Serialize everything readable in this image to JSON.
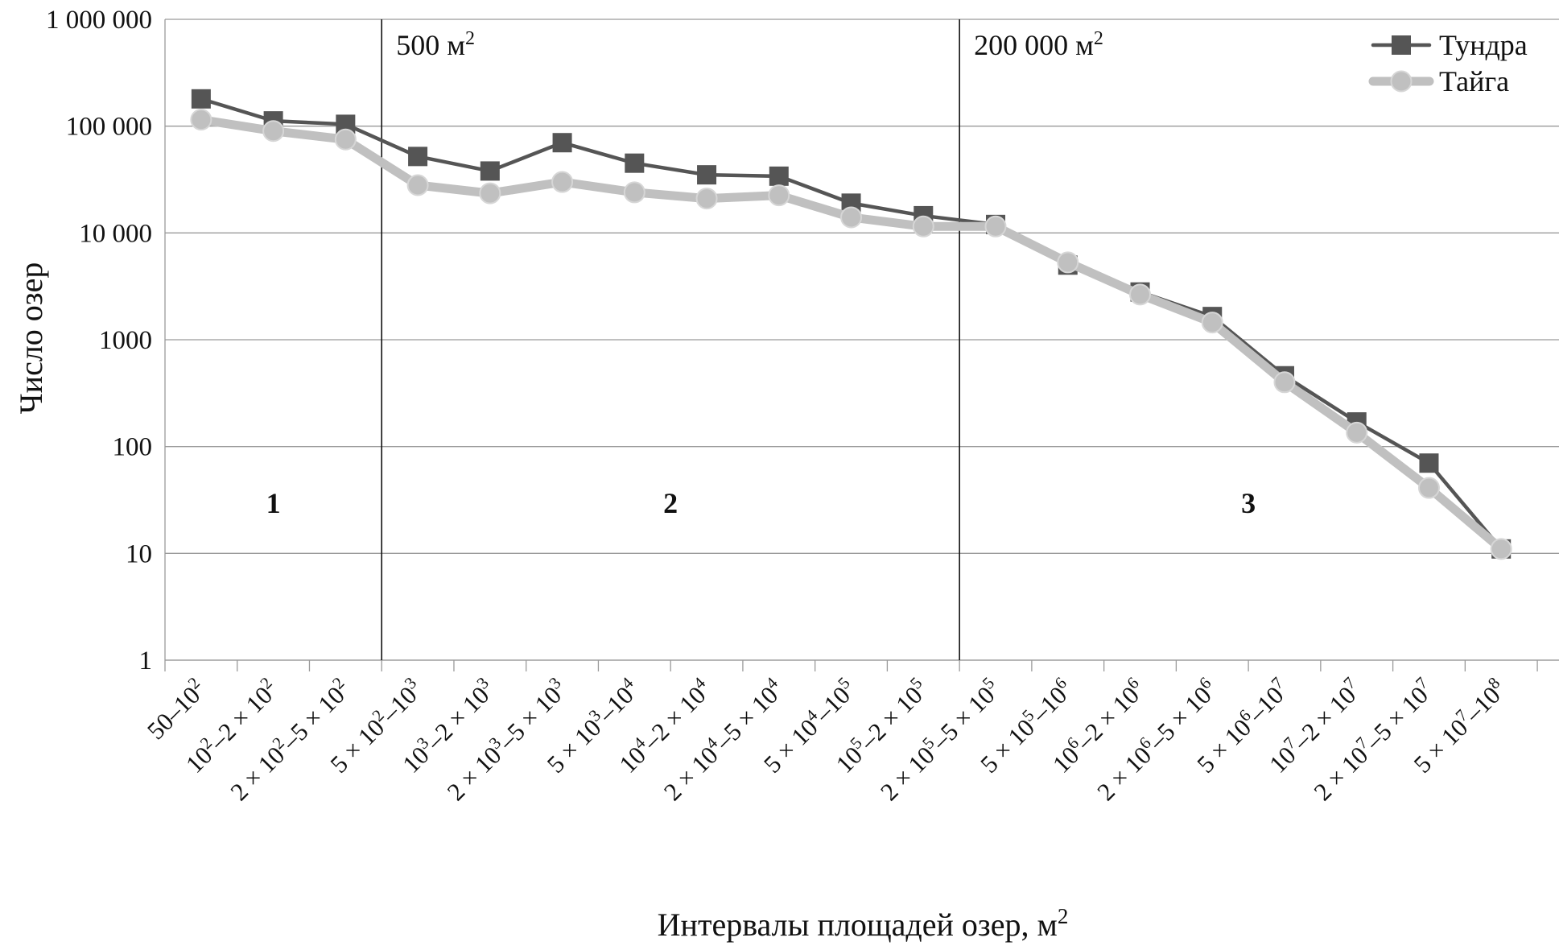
{
  "chart_data": {
    "type": "line",
    "xlabel": "Интервалы площадей озер, м",
    "xlabel_sup": "2",
    "ylabel": "Число озер",
    "y_scale": "log",
    "ylim": [
      1,
      1000000
    ],
    "y_ticks": [
      {
        "value": 1,
        "label": "1"
      },
      {
        "value": 10,
        "label": "10"
      },
      {
        "value": 100,
        "label": "100"
      },
      {
        "value": 1000,
        "label": "1000"
      },
      {
        "value": 10000,
        "label": "10 000"
      },
      {
        "value": 100000,
        "label": "100 000"
      },
      {
        "value": 1000000,
        "label": "1 000 000"
      }
    ],
    "grid": "horizontal",
    "legend_position": "top-right",
    "categories": [
      [
        {
          "t": "50–10"
        },
        {
          "t": "2",
          "s": true
        }
      ],
      [
        {
          "t": "10"
        },
        {
          "t": "2",
          "s": true
        },
        {
          "t": "–2 × 10"
        },
        {
          "t": "2",
          "s": true
        }
      ],
      [
        {
          "t": "2 × 10"
        },
        {
          "t": "2",
          "s": true
        },
        {
          "t": "–5 × 10"
        },
        {
          "t": "2",
          "s": true
        }
      ],
      [
        {
          "t": "5 × 10"
        },
        {
          "t": "2",
          "s": true
        },
        {
          "t": "–10"
        },
        {
          "t": "3",
          "s": true
        }
      ],
      [
        {
          "t": "10"
        },
        {
          "t": "3",
          "s": true
        },
        {
          "t": "–2 × 10"
        },
        {
          "t": "3",
          "s": true
        }
      ],
      [
        {
          "t": "2 × 10"
        },
        {
          "t": "3",
          "s": true
        },
        {
          "t": "–5 × 10"
        },
        {
          "t": "3",
          "s": true
        }
      ],
      [
        {
          "t": "5 × 10"
        },
        {
          "t": "3",
          "s": true
        },
        {
          "t": "–10"
        },
        {
          "t": "4",
          "s": true
        }
      ],
      [
        {
          "t": "10"
        },
        {
          "t": "4",
          "s": true
        },
        {
          "t": "–2 × 10"
        },
        {
          "t": "4",
          "s": true
        }
      ],
      [
        {
          "t": "2 × 10"
        },
        {
          "t": "4",
          "s": true
        },
        {
          "t": "–5 × 10"
        },
        {
          "t": "4",
          "s": true
        }
      ],
      [
        {
          "t": "5 × 10"
        },
        {
          "t": "4",
          "s": true
        },
        {
          "t": "–10"
        },
        {
          "t": "5",
          "s": true
        }
      ],
      [
        {
          "t": "10"
        },
        {
          "t": "5",
          "s": true
        },
        {
          "t": "–2 × 10"
        },
        {
          "t": "5",
          "s": true
        }
      ],
      [
        {
          "t": "2 × 10"
        },
        {
          "t": "5",
          "s": true
        },
        {
          "t": "–5 × 10"
        },
        {
          "t": "5",
          "s": true
        }
      ],
      [
        {
          "t": "5 × 10"
        },
        {
          "t": "5",
          "s": true
        },
        {
          "t": "–10"
        },
        {
          "t": "6",
          "s": true
        }
      ],
      [
        {
          "t": "10"
        },
        {
          "t": "6",
          "s": true
        },
        {
          "t": "–2 × 10"
        },
        {
          "t": "6",
          "s": true
        }
      ],
      [
        {
          "t": "2 × 10"
        },
        {
          "t": "6",
          "s": true
        },
        {
          "t": "–5 × 10"
        },
        {
          "t": "6",
          "s": true
        }
      ],
      [
        {
          "t": "5 × 10"
        },
        {
          "t": "6",
          "s": true
        },
        {
          "t": "–10"
        },
        {
          "t": "7",
          "s": true
        }
      ],
      [
        {
          "t": "10"
        },
        {
          "t": "7",
          "s": true
        },
        {
          "t": "–2 × 10"
        },
        {
          "t": "7",
          "s": true
        }
      ],
      [
        {
          "t": "2 × 10"
        },
        {
          "t": "7",
          "s": true
        },
        {
          "t": "–5 × 10"
        },
        {
          "t": "7",
          "s": true
        }
      ],
      [
        {
          "t": "5 × 10"
        },
        {
          "t": "7",
          "s": true
        },
        {
          "t": "–10"
        },
        {
          "t": "8",
          "s": true
        }
      ]
    ],
    "series": [
      {
        "name": "Тундра",
        "color": "#555555",
        "marker": "square",
        "values": [
          180000,
          112000,
          104000,
          52000,
          38000,
          70000,
          45000,
          35000,
          34000,
          19000,
          14500,
          12000,
          5000,
          2800,
          1650,
          460,
          170,
          70,
          11
        ]
      },
      {
        "name": "Тайга",
        "color": "#c0c0c0",
        "marker": "circle",
        "values": [
          115000,
          90000,
          75000,
          28000,
          23500,
          30000,
          24000,
          21000,
          22500,
          14000,
          11500,
          11500,
          5300,
          2650,
          1450,
          400,
          135,
          41,
          11
        ]
      }
    ],
    "annotations": [
      {
        "text": "500 м",
        "sup": "2",
        "after_category_index": 2
      },
      {
        "text": "200 000 м",
        "sup": "2",
        "after_category_index": 10
      }
    ],
    "zones": [
      {
        "label": "1",
        "from_index": 0,
        "to_index": 2
      },
      {
        "label": "2",
        "from_index": 3,
        "to_index": 10
      },
      {
        "label": "3",
        "from_index": 11,
        "to_index": 18
      }
    ]
  }
}
